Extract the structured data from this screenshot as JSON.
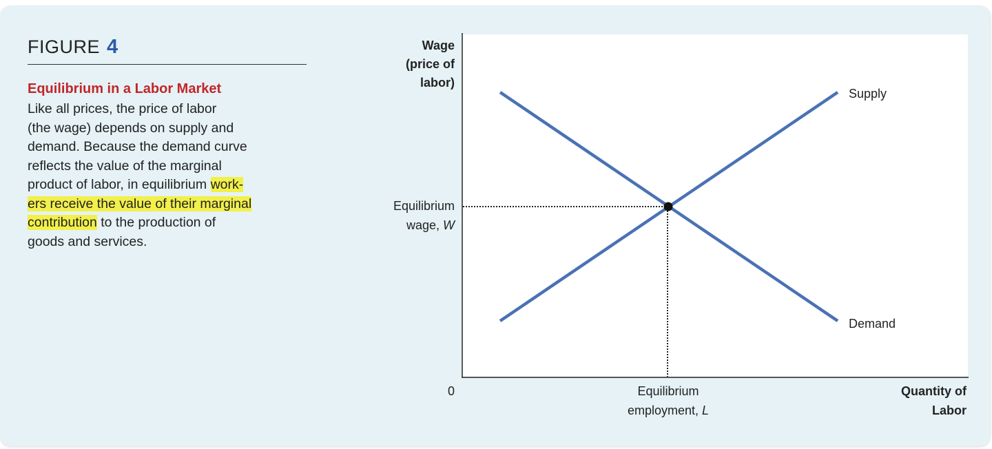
{
  "figure": {
    "label": "FIGURE",
    "number": "4",
    "title": "Equilibrium in a Labor Market",
    "body_before_highlight": "Like all prices, the price of labor (the wage) depends on supply and demand. Because the demand curve reflects the value of the marginal product of labor, in equilibrium ",
    "body_highlight_1": "work-",
    "body_highlight_2": "ers receive the value of their marginal",
    "body_highlight_3": "contribution",
    "body_after_highlight": " to the production of goods and services.",
    "highlight_color": "#f2f04a",
    "title_color": "#c0262b",
    "number_color": "#2d5ba8"
  },
  "diagram": {
    "y_axis_label_lines": [
      "Wage",
      "(price of",
      "labor)"
    ],
    "x_axis_label_lines": [
      "Quantity of",
      "Labor"
    ],
    "origin_label": "0",
    "equilibrium_wage_lines": [
      "Equilibrium",
      "wage, "
    ],
    "equilibrium_wage_var": "W",
    "equilibrium_employment_lines": [
      "Equilibrium",
      "employment, "
    ],
    "equilibrium_employment_var": "L",
    "supply_label": "Supply",
    "demand_label": "Demand",
    "curve_color": "#4a72b5"
  }
}
